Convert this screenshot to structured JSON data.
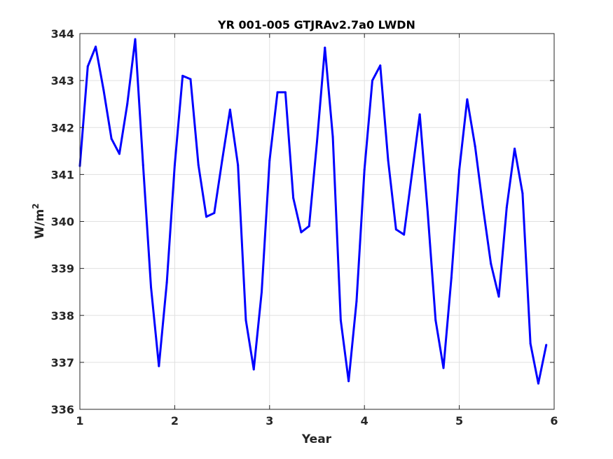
{
  "chart_data": {
    "type": "line",
    "title": "YR 001-005 GTJRAv2.7a0 LWDN",
    "xlabel": "Year",
    "ylabel": "W/m",
    "ylabel_superscript": "2",
    "xlim": [
      1,
      6
    ],
    "ylim": [
      336,
      344
    ],
    "xticks": [
      1,
      2,
      3,
      4,
      5,
      6
    ],
    "yticks": [
      336,
      337,
      338,
      339,
      340,
      341,
      342,
      343,
      344
    ],
    "grid": true,
    "colors": {
      "line": "#0000ff",
      "grid": "#e0e0e0",
      "axis": "#262626"
    },
    "series": [
      {
        "x": [
          1.0,
          1.0833,
          1.1667,
          1.25,
          1.3333,
          1.4167,
          1.5,
          1.5833,
          1.6667,
          1.75,
          1.8333,
          1.9167,
          2.0,
          2.0833,
          2.1667,
          2.25,
          2.3333,
          2.4167,
          2.5,
          2.5833,
          2.6667,
          2.75,
          2.8333,
          2.9167,
          3.0,
          3.0833,
          3.1667,
          3.25,
          3.3333,
          3.4167,
          3.5,
          3.5833,
          3.6667,
          3.75,
          3.8333,
          3.9167,
          4.0,
          4.0833,
          4.1667,
          4.25,
          4.3333,
          4.4167,
          4.5,
          4.5833,
          4.6667,
          4.75,
          4.8333,
          4.9167,
          5.0,
          5.0833,
          5.1667,
          5.25,
          5.3333,
          5.4167,
          5.5,
          5.5833,
          5.6667,
          5.75,
          5.8333,
          5.9167
        ],
        "values": [
          341.18,
          343.3,
          343.72,
          342.8,
          341.76,
          341.44,
          342.5,
          343.88,
          341.2,
          338.6,
          336.92,
          338.7,
          341.2,
          343.1,
          343.03,
          341.2,
          340.1,
          340.18,
          341.3,
          342.38,
          341.2,
          337.9,
          336.85,
          338.5,
          341.3,
          342.75,
          342.75,
          340.5,
          339.77,
          339.9,
          341.7,
          343.7,
          341.8,
          337.9,
          336.6,
          338.3,
          341.1,
          343.0,
          343.32,
          341.3,
          339.83,
          339.72,
          341.0,
          342.28,
          340.2,
          337.9,
          336.88,
          338.8,
          341.1,
          342.6,
          341.6,
          340.3,
          339.1,
          338.4,
          340.3,
          341.55,
          340.6,
          337.4,
          336.55,
          337.37
        ]
      }
    ]
  }
}
